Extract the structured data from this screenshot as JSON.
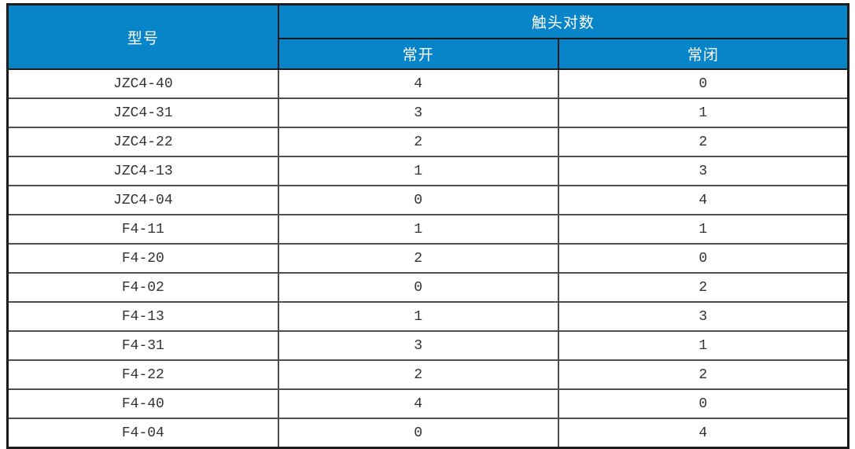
{
  "colors": {
    "header_bg": "#0884c8",
    "header_text": "#ffffff",
    "body_text": "#333333",
    "frame_border": "#1b1b1b",
    "header_border": "#1b1b1b",
    "body_border": "#4e4e4e",
    "page_bg": "#ffffff"
  },
  "table": {
    "header": {
      "model_label": "型号",
      "contacts_group_label": "触头对数",
      "normally_open_label": "常开",
      "normally_closed_label": "常闭"
    },
    "rows": [
      {
        "model": "JZC4-40",
        "no": "4",
        "nc": "0"
      },
      {
        "model": "JZC4-31",
        "no": "3",
        "nc": "1"
      },
      {
        "model": "JZC4-22",
        "no": "2",
        "nc": "2"
      },
      {
        "model": "JZC4-13",
        "no": "1",
        "nc": "3"
      },
      {
        "model": "JZC4-04",
        "no": "0",
        "nc": "4"
      },
      {
        "model": "F4-11",
        "no": "1",
        "nc": "1"
      },
      {
        "model": "F4-20",
        "no": "2",
        "nc": "0"
      },
      {
        "model": "F4-02",
        "no": "0",
        "nc": "2"
      },
      {
        "model": "F4-13",
        "no": "1",
        "nc": "3"
      },
      {
        "model": "F4-31",
        "no": "3",
        "nc": "1"
      },
      {
        "model": "F4-22",
        "no": "2",
        "nc": "2"
      },
      {
        "model": "F4-40",
        "no": "4",
        "nc": "0"
      },
      {
        "model": "F4-04",
        "no": "0",
        "nc": "4"
      }
    ]
  }
}
